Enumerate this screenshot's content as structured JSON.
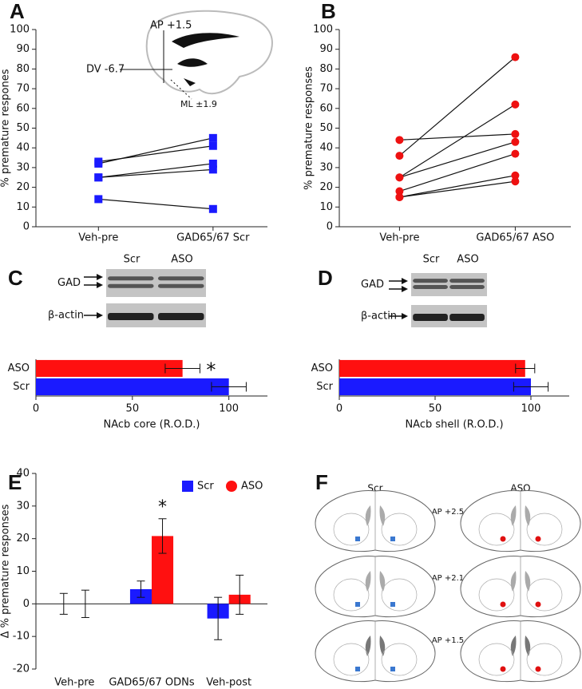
{
  "chart_data": [
    {
      "panel": "A",
      "type": "line",
      "categories": [
        "Veh-pre",
        "GAD65/67 Scr"
      ],
      "ylabel": "% premature respones",
      "ylim": [
        0,
        100
      ],
      "yticks": [
        0,
        10,
        20,
        30,
        40,
        50,
        60,
        70,
        80,
        90,
        100
      ],
      "marker": "square",
      "color": "#1a1aff",
      "series": [
        {
          "values": [
            33,
            41
          ]
        },
        {
          "values": [
            32,
            45
          ]
        },
        {
          "values": [
            25,
            32
          ]
        },
        {
          "values": [
            25,
            29
          ]
        },
        {
          "values": [
            14,
            9
          ]
        }
      ],
      "annotations": [
        "AP +1.5",
        "DV -6.7",
        "ML ±1.9"
      ]
    },
    {
      "panel": "B",
      "type": "line",
      "categories": [
        "Veh-pre",
        "GAD65/67 ASO"
      ],
      "ylabel": "% premature responses",
      "ylim": [
        0,
        100
      ],
      "yticks": [
        0,
        10,
        20,
        30,
        40,
        50,
        60,
        70,
        80,
        90,
        100
      ],
      "marker": "circle",
      "color": "#ee1111",
      "series": [
        {
          "values": [
            44,
            47
          ]
        },
        {
          "values": [
            36,
            86
          ]
        },
        {
          "values": [
            25,
            62
          ]
        },
        {
          "values": [
            25,
            43
          ]
        },
        {
          "values": [
            18,
            37
          ]
        },
        {
          "values": [
            15,
            26
          ]
        },
        {
          "values": [
            15,
            23
          ]
        }
      ]
    },
    {
      "panel": "C",
      "type": "bar",
      "orientation": "horizontal",
      "categories": [
        "ASO",
        "Scr"
      ],
      "values": [
        76,
        100
      ],
      "errors": [
        9,
        9
      ],
      "colors": [
        "#ff1010",
        "#1a1aff"
      ],
      "xlim": [
        0,
        120
      ],
      "xticks": [
        0,
        50,
        100
      ],
      "xlabel": "NAcb core (R.O.D.)",
      "annotation": "*",
      "blot": {
        "lanes": [
          "Scr",
          "ASO"
        ],
        "rows": [
          "GAD",
          "β-actin"
        ]
      }
    },
    {
      "panel": "D",
      "type": "bar",
      "orientation": "horizontal",
      "categories": [
        "ASO",
        "Scr"
      ],
      "values": [
        97,
        100
      ],
      "errors": [
        5,
        9
      ],
      "colors": [
        "#ff1010",
        "#1a1aff"
      ],
      "xlim": [
        0,
        120
      ],
      "xticks": [
        0,
        50,
        100
      ],
      "xlabel": "NAcb shell (R.O.D.)",
      "blot": {
        "lanes": [
          "Scr",
          "ASO"
        ],
        "rows": [
          "GAD",
          "β-actin"
        ]
      }
    },
    {
      "panel": "E",
      "type": "bar",
      "categories": [
        "Veh-pre",
        "GAD65/67 ODNs",
        "Veh-post"
      ],
      "ylabel": "Δ % premature responses",
      "ylim": [
        -20,
        40
      ],
      "yticks": [
        -20,
        -10,
        0,
        10,
        20,
        30,
        40
      ],
      "legend": "top-right",
      "annotation": "*",
      "series": [
        {
          "name": "Scr",
          "color": "#1a1aff",
          "marker": "square",
          "values": [
            0,
            4.5,
            -4.5
          ],
          "errors": [
            3.2,
            2.5,
            6.5
          ]
        },
        {
          "name": "ASO",
          "color": "#ff1010",
          "marker": "circle",
          "values": [
            0,
            20.8,
            2.8
          ],
          "errors": [
            4.2,
            5.3,
            6
          ]
        }
      ]
    }
  ],
  "atlas": {
    "panel": "F",
    "columns": [
      "Scr",
      "ASO"
    ],
    "levels": [
      "AP +2.5",
      "AP +2.1",
      "AP +1.5"
    ]
  }
}
